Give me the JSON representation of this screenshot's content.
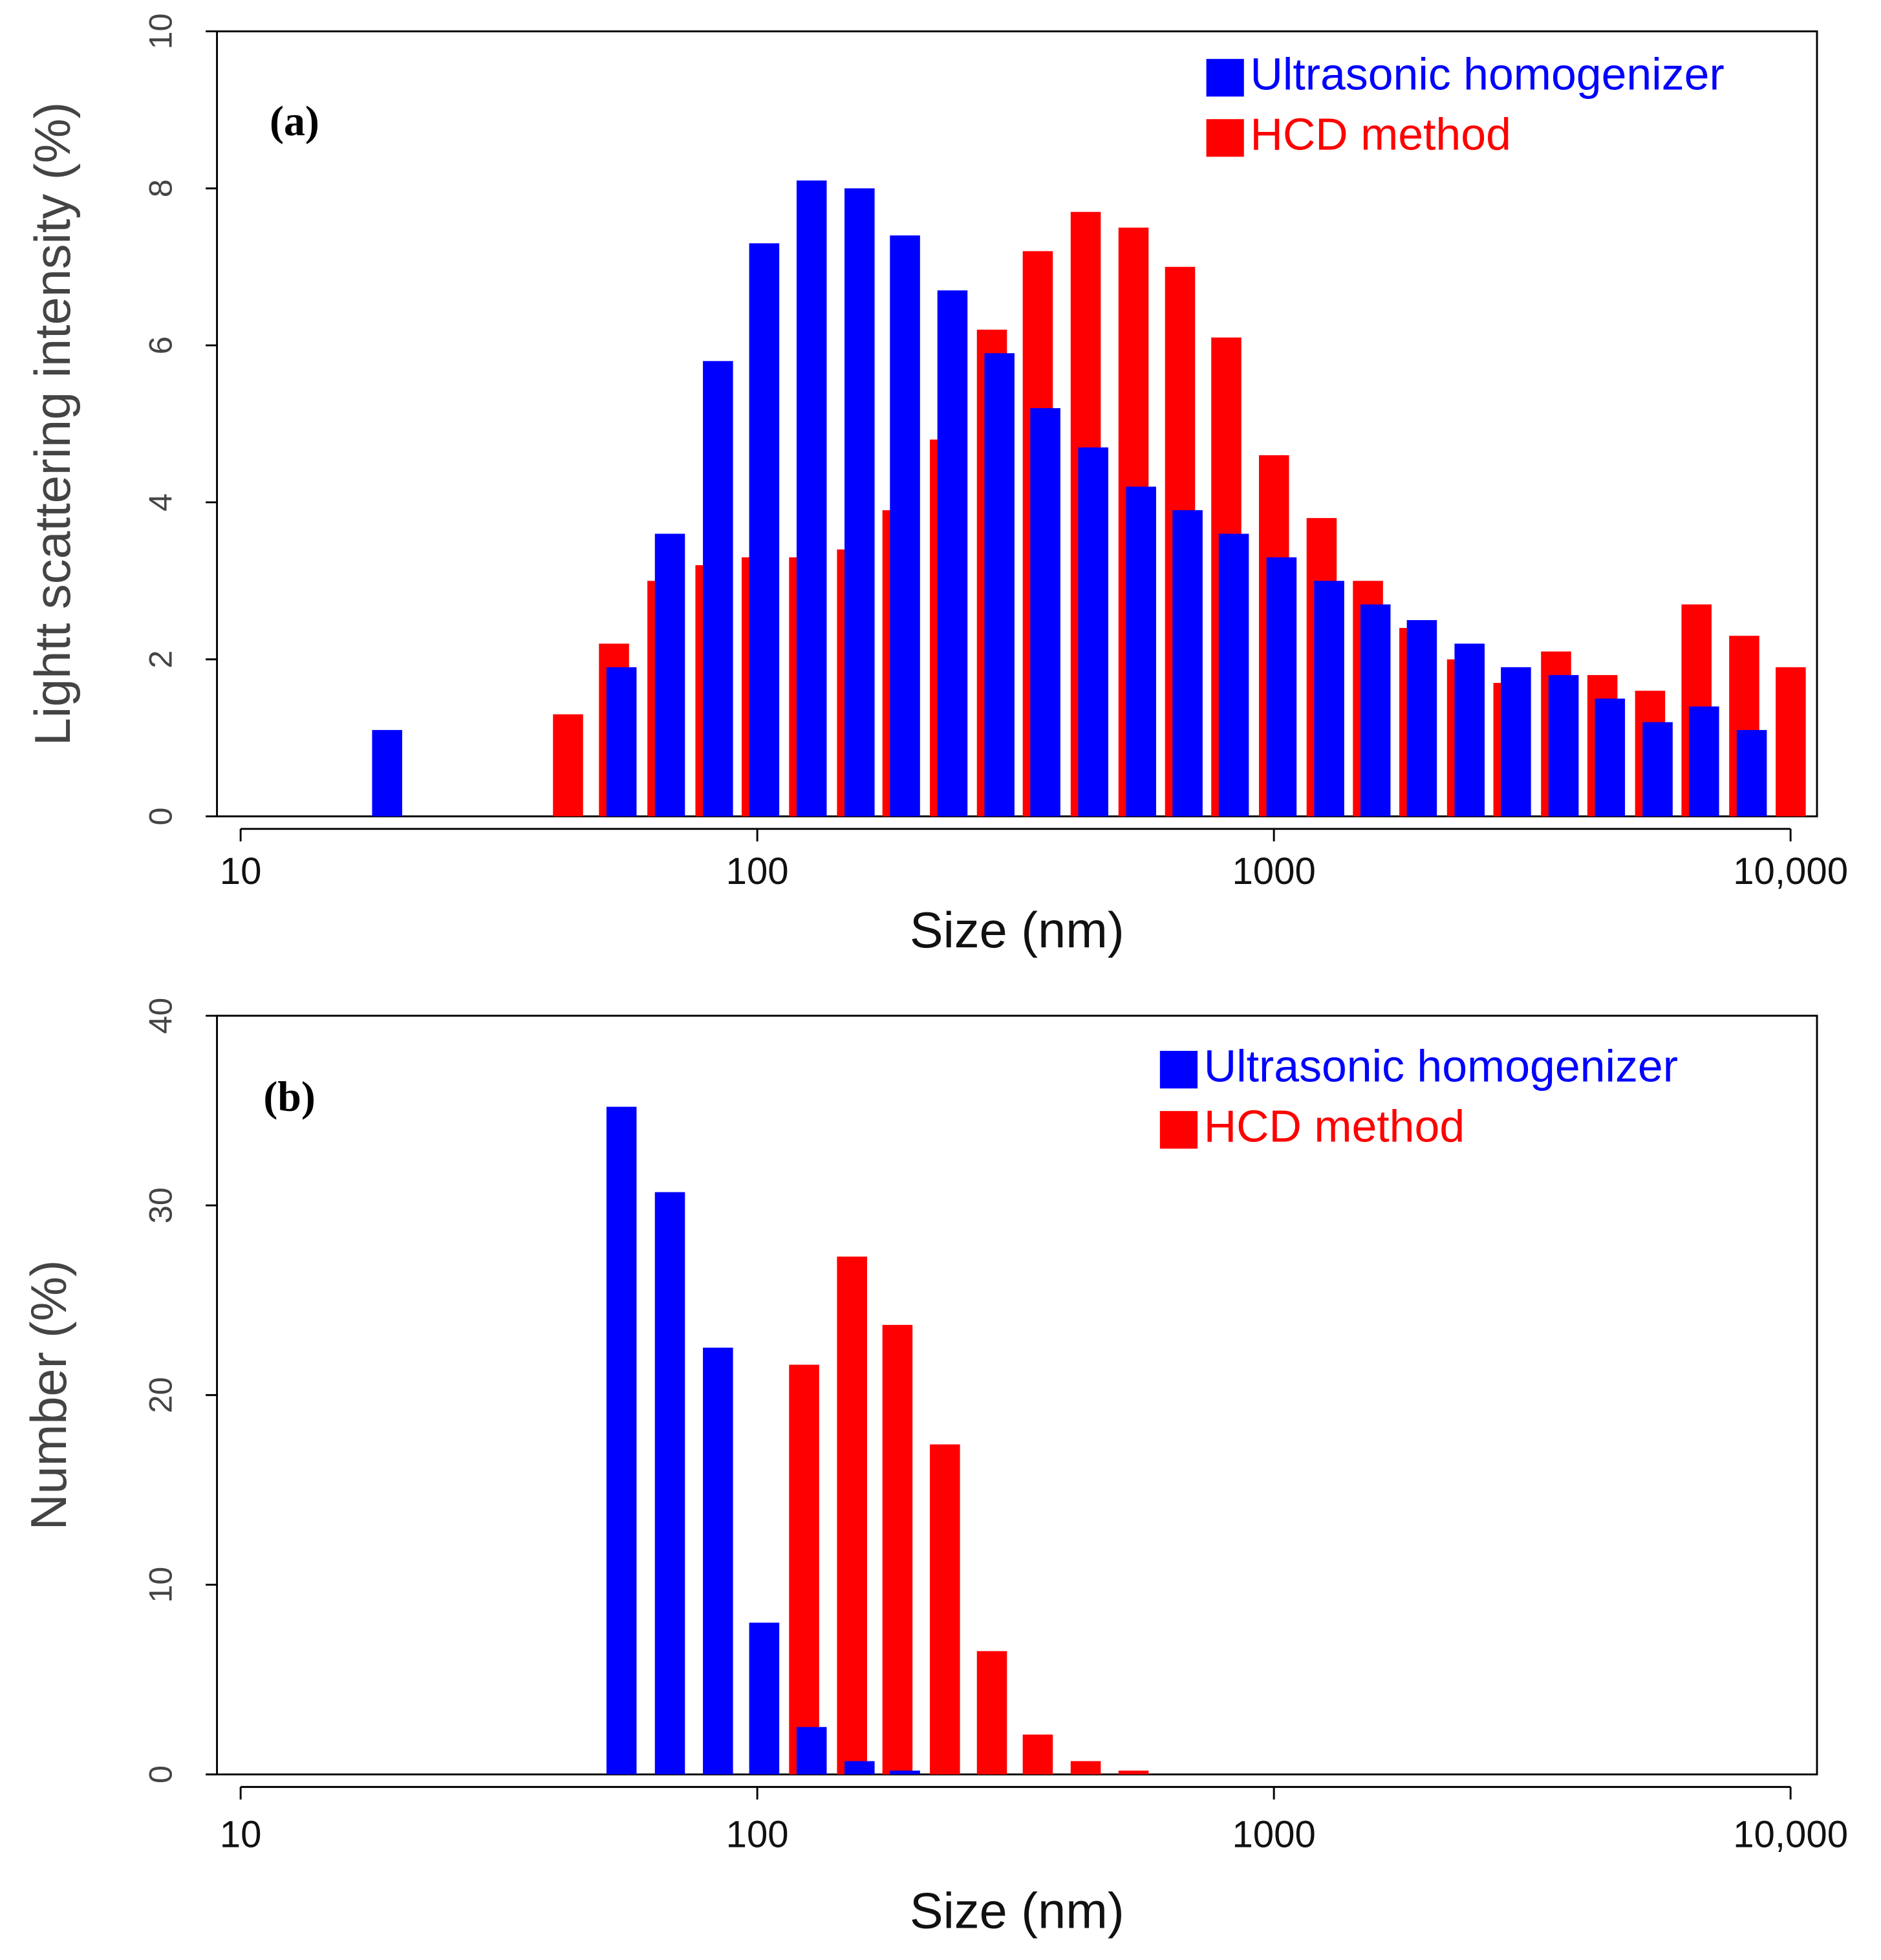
{
  "chart_data": [
    {
      "type": "bar",
      "annotation": "(a)",
      "xlabel": "Size (nm)",
      "ylabel": "Lightt scattering intensity (%)",
      "log_x": true,
      "xlim": [
        9,
        11250
      ],
      "xticks": [
        10,
        100,
        1000,
        {
          "value": 10000,
          "label": "10,000"
        }
      ],
      "ylim": [
        0,
        10
      ],
      "yticks": [
        0,
        2,
        4,
        6,
        8,
        10
      ],
      "legend": "upper right",
      "x": [
        19,
        44,
        54,
        67,
        83,
        102,
        126,
        156,
        191,
        236,
        291,
        357,
        442,
        547,
        673,
        827,
        1023,
        1265,
        1555,
        1912,
        2365,
        2908,
        3596,
        4421,
        5468,
        6725,
        8318,
        10233
      ],
      "series": [
        {
          "name": "HCD method",
          "color": "#ff0000",
          "values": [
            null,
            1.3,
            2.2,
            3.0,
            3.2,
            3.3,
            3.3,
            3.4,
            3.9,
            4.8,
            6.2,
            7.2,
            7.7,
            7.5,
            7.0,
            6.1,
            4.6,
            3.8,
            3.0,
            2.4,
            2.0,
            1.7,
            2.1,
            1.8,
            1.6,
            2.7,
            2.3,
            1.9
          ]
        },
        {
          "name": "Ultrasonic homogenizer",
          "color": "#0000ff",
          "values": [
            1.1,
            null,
            1.9,
            3.6,
            5.8,
            7.3,
            8.1,
            8.0,
            7.4,
            6.7,
            5.9,
            5.2,
            4.7,
            4.2,
            3.9,
            3.6,
            3.3,
            3.0,
            2.7,
            2.5,
            2.2,
            1.9,
            1.8,
            1.5,
            1.2,
            1.4,
            1.1,
            null
          ]
        }
      ]
    },
    {
      "type": "bar",
      "annotation": "(b)",
      "xlabel": "Size (nm)",
      "ylabel": "Number (%)",
      "log_x": true,
      "xlim": [
        9,
        11250
      ],
      "xticks": [
        10,
        100,
        1000,
        {
          "value": 10000,
          "label": "10,000"
        }
      ],
      "ylim": [
        0,
        40
      ],
      "yticks": [
        0,
        10,
        20,
        30,
        40
      ],
      "legend": "upper right",
      "x": [
        54,
        67,
        83,
        102,
        126,
        156,
        191,
        236,
        291,
        357,
        442,
        547
      ],
      "series": [
        {
          "name": "HCD method",
          "color": "#ff0000",
          "values": [
            null,
            null,
            null,
            null,
            21.6,
            27.3,
            23.7,
            17.4,
            6.5,
            2.1,
            0.7,
            0.2
          ]
        },
        {
          "name": "Ultrasonic homogenizer",
          "color": "#0000ff",
          "values": [
            35.2,
            30.7,
            22.5,
            8.0,
            2.5,
            0.7,
            0.2,
            null,
            null,
            null,
            null,
            null
          ]
        }
      ]
    }
  ]
}
